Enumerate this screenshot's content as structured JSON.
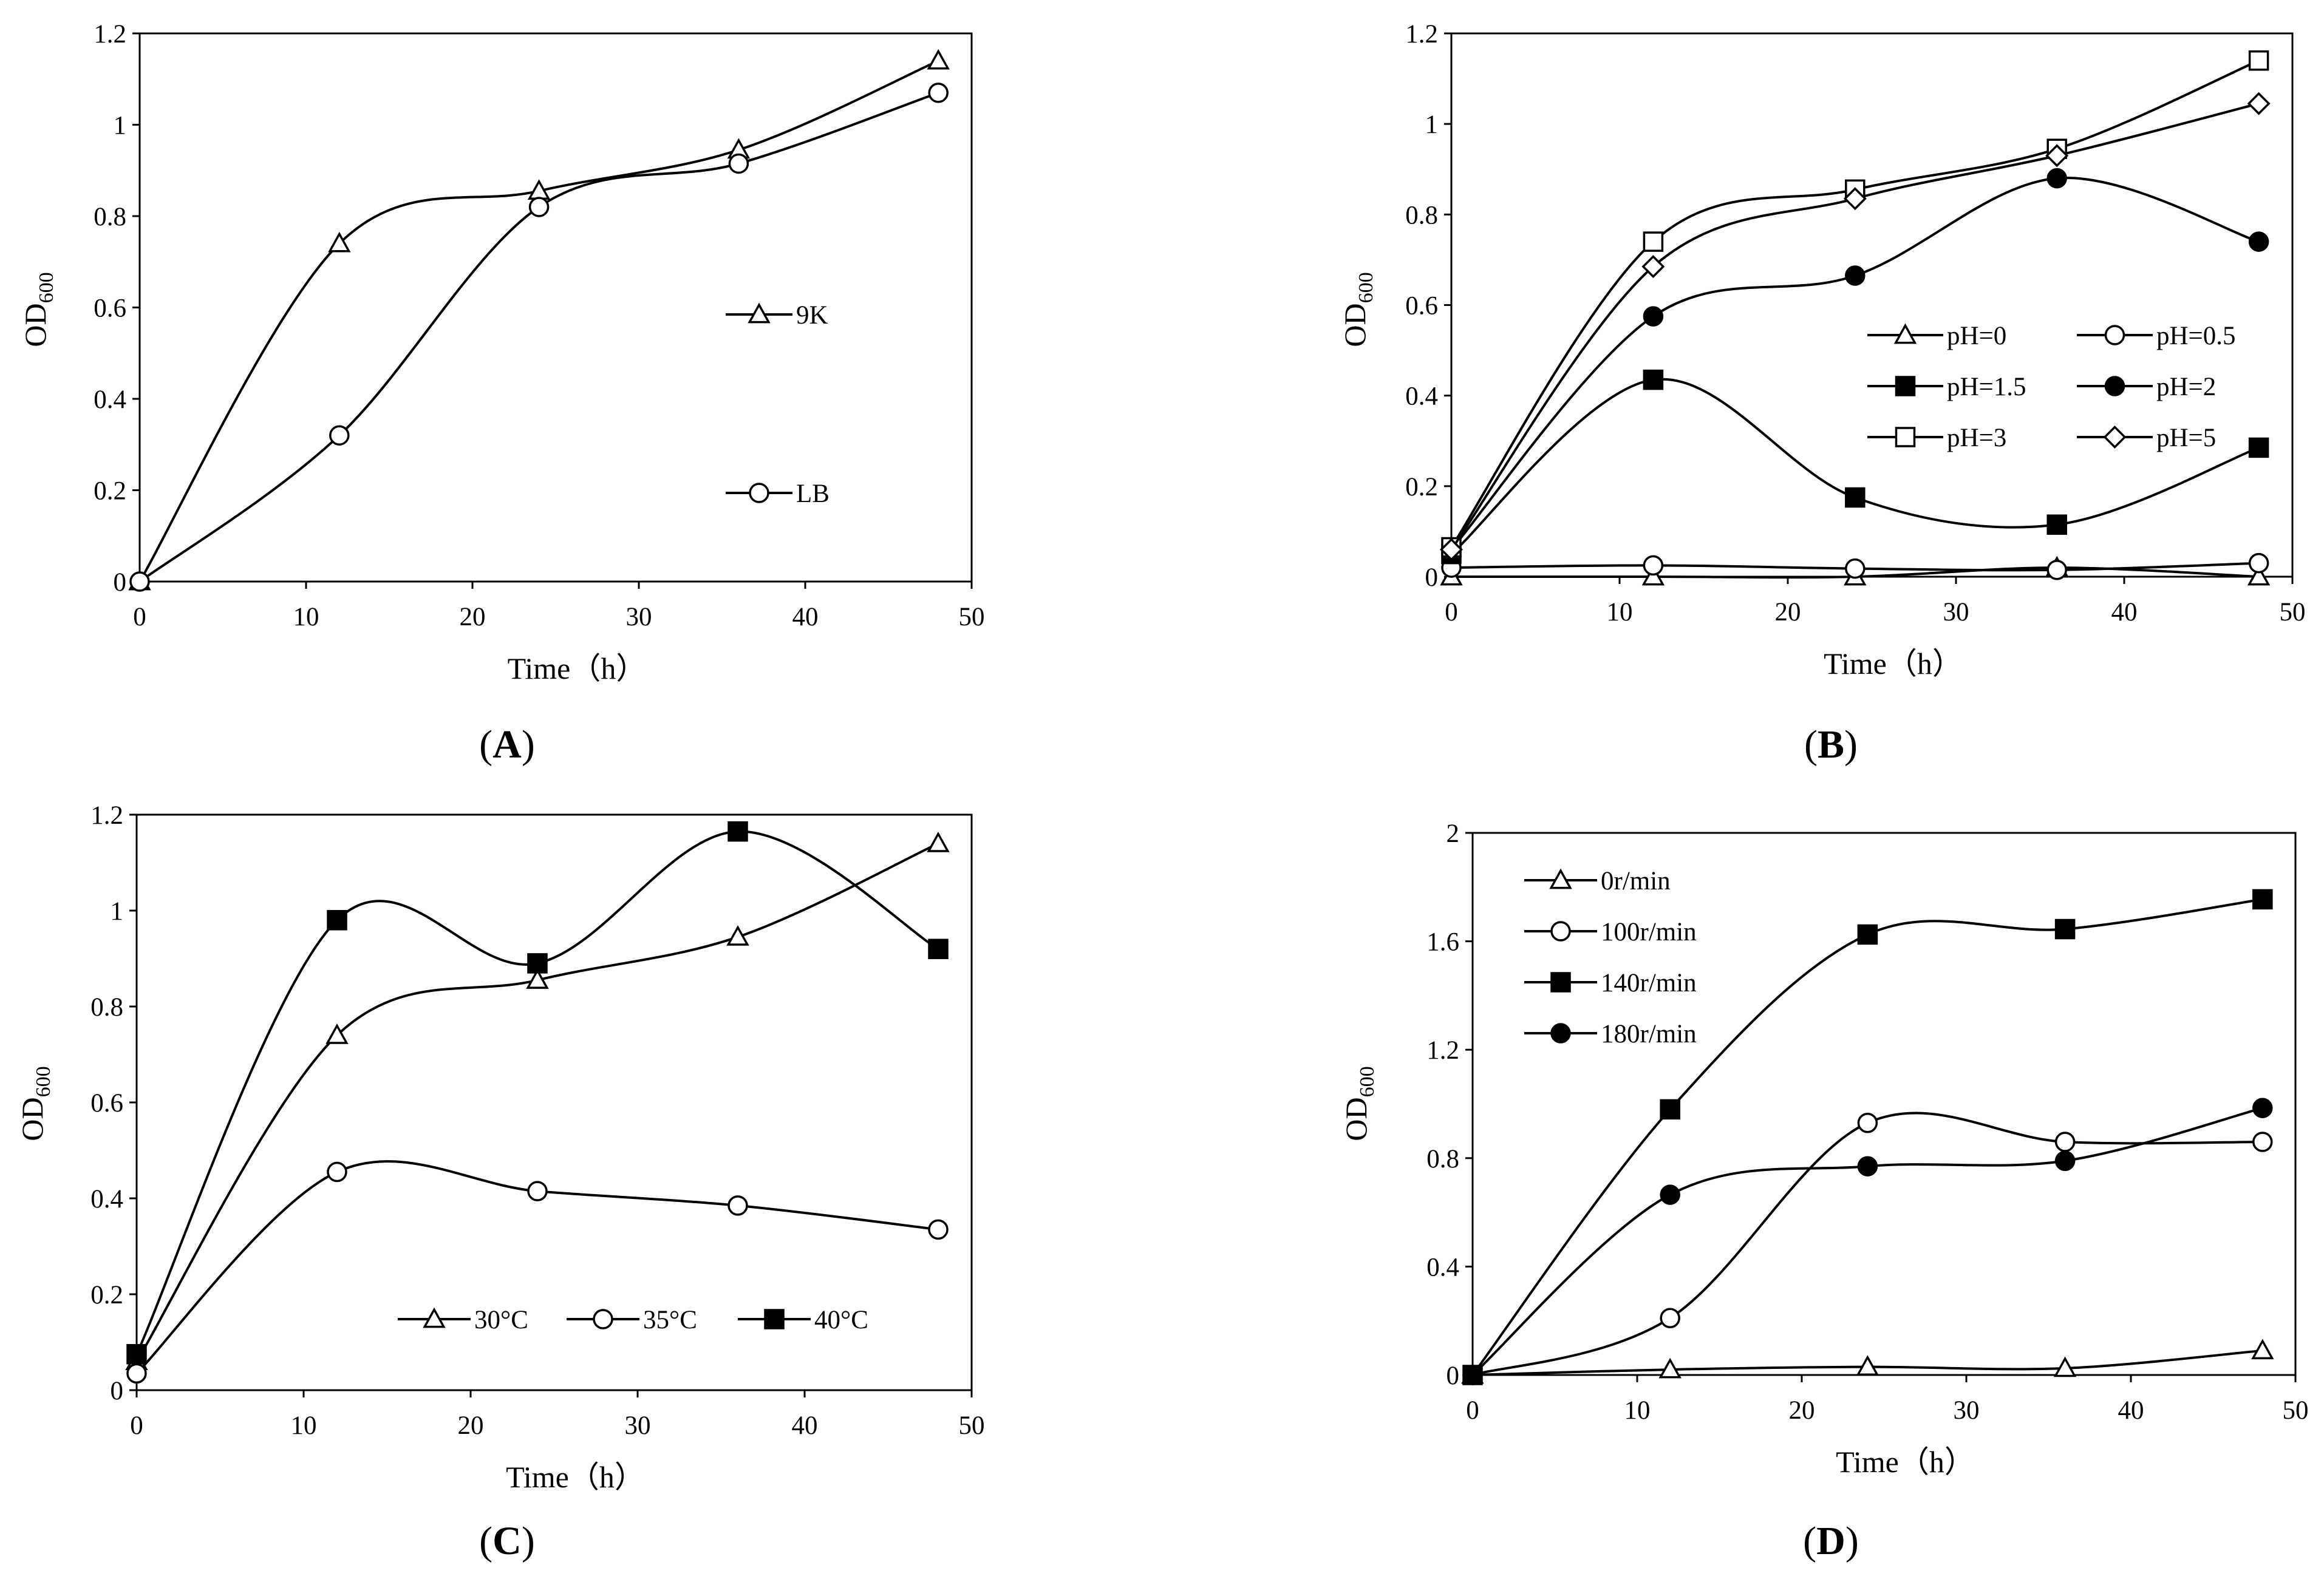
{
  "chart_data": [
    {
      "id": "A",
      "panel_label": "(A)",
      "type": "line",
      "xlabel": "Time（h）",
      "ylabel": "OD",
      "ylabel_sub": "600",
      "xlim": [
        0,
        50
      ],
      "ylim": [
        0,
        1.2
      ],
      "xticks": [
        0,
        10,
        20,
        30,
        40,
        50
      ],
      "yticks": [
        0,
        0.2,
        0.4,
        0.6,
        0.8,
        1,
        1.2
      ],
      "x": [
        0,
        12,
        24,
        36,
        48
      ],
      "legend_placement": "center-right",
      "series": [
        {
          "name": "9K",
          "marker": "triangle-open",
          "values": [
            0,
            0.74,
            0.855,
            0.945,
            1.14
          ]
        },
        {
          "name": "LB",
          "marker": "circle-open",
          "values": [
            0,
            0.32,
            0.82,
            0.915,
            1.07
          ]
        }
      ]
    },
    {
      "id": "B",
      "panel_label": "(B)",
      "type": "line",
      "xlabel": "Time（h）",
      "ylabel": "OD",
      "ylabel_sub": "600",
      "xlim": [
        0,
        50
      ],
      "ylim": [
        0,
        1.2
      ],
      "xticks": [
        0,
        10,
        20,
        30,
        40,
        50
      ],
      "yticks": [
        0,
        0.2,
        0.4,
        0.6,
        0.8,
        1,
        1.2
      ],
      "x": [
        0,
        12,
        24,
        36,
        48
      ],
      "legend_placement": "center-right",
      "series": [
        {
          "name": "pH=0",
          "marker": "triangle-open",
          "values": [
            0.0,
            0.0,
            0.0,
            0.02,
            0.0
          ]
        },
        {
          "name": "pH=0.5",
          "marker": "circle-open",
          "values": [
            0.02,
            0.025,
            0.018,
            0.015,
            0.03
          ]
        },
        {
          "name": "pH=1.5",
          "marker": "square-filled",
          "values": [
            0.05,
            0.435,
            0.175,
            0.115,
            0.285
          ]
        },
        {
          "name": "pH=2",
          "marker": "circle-filled",
          "values": [
            0.06,
            0.575,
            0.665,
            0.88,
            0.74
          ]
        },
        {
          "name": "pH=3",
          "marker": "square-open",
          "values": [
            0.065,
            0.74,
            0.855,
            0.945,
            1.14
          ]
        },
        {
          "name": "pH=5",
          "marker": "diamond-open",
          "values": [
            0.06,
            0.685,
            0.835,
            0.93,
            1.045
          ]
        }
      ]
    },
    {
      "id": "C",
      "panel_label": "(C)",
      "type": "line",
      "xlabel": "Time（h）",
      "ylabel": "OD",
      "ylabel_sub": "600",
      "xlim": [
        0,
        50
      ],
      "ylim": [
        0,
        1.2
      ],
      "xticks": [
        0,
        10,
        20,
        30,
        40,
        50
      ],
      "yticks": [
        0,
        0.2,
        0.4,
        0.6,
        0.8,
        1,
        1.2
      ],
      "x": [
        0,
        12,
        24,
        36,
        48
      ],
      "legend_placement": "bottom-right",
      "series": [
        {
          "name": "30°C",
          "marker": "triangle-open",
          "values": [
            0.06,
            0.74,
            0.855,
            0.945,
            1.14
          ]
        },
        {
          "name": "35°C",
          "marker": "circle-open",
          "values": [
            0.035,
            0.455,
            0.415,
            0.385,
            0.335
          ]
        },
        {
          "name": "40°C",
          "marker": "square-filled",
          "values": [
            0.075,
            0.98,
            0.89,
            1.165,
            0.92
          ]
        }
      ]
    },
    {
      "id": "D",
      "panel_label": "(D)",
      "type": "line",
      "xlabel": "Time（h）",
      "ylabel": "OD",
      "ylabel_sub": "600",
      "xlim": [
        0,
        50
      ],
      "ylim": [
        0,
        2
      ],
      "xticks": [
        0,
        10,
        20,
        30,
        40,
        50
      ],
      "yticks": [
        0,
        0.4,
        0.8,
        1.2,
        1.6,
        2
      ],
      "x": [
        0,
        12,
        24,
        36,
        48
      ],
      "legend_placement": "top-left",
      "series": [
        {
          "name": "0r/min",
          "marker": "triangle-open",
          "values": [
            0.0,
            0.02,
            0.03,
            0.025,
            0.09
          ]
        },
        {
          "name": "100r/min",
          "marker": "circle-open",
          "values": [
            0.0,
            0.21,
            0.93,
            0.86,
            0.86
          ]
        },
        {
          "name": "140r/min",
          "marker": "square-filled",
          "values": [
            0.0,
            0.98,
            1.625,
            1.645,
            1.755
          ]
        },
        {
          "name": "180r/min",
          "marker": "circle-filled",
          "values": [
            0.0,
            0.665,
            0.77,
            0.79,
            0.985
          ]
        }
      ]
    }
  ]
}
